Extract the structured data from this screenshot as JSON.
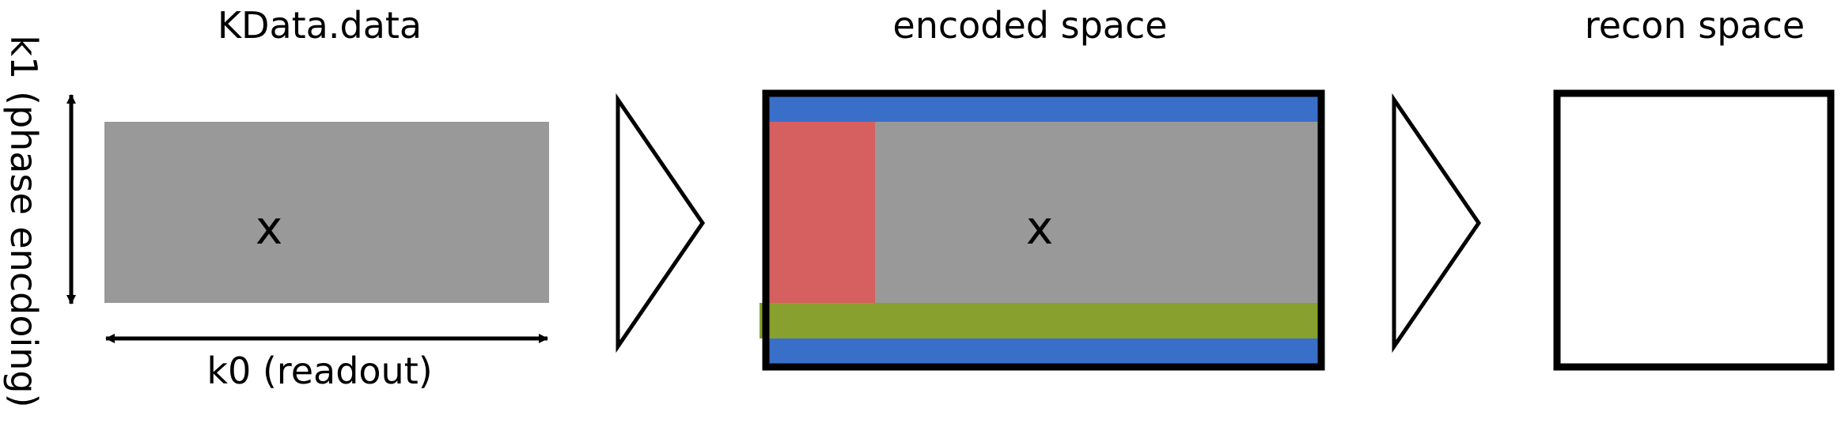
{
  "panels": {
    "kdata": {
      "title": "KData.data",
      "mark": "x",
      "fill": "#999999"
    },
    "encoded": {
      "title": "encoded space",
      "mark": "x",
      "colors": {
        "outer_band": "#3a6fc9",
        "left_block": "#d65f5f",
        "center": "#999999",
        "lower_band": "#88a02d",
        "frame": "#000000"
      }
    },
    "recon": {
      "title": "recon space",
      "frame": "#000000"
    }
  },
  "axes": {
    "k0_label": "k0 (readout)",
    "k1_label": "k1 (phase encdoing)"
  }
}
